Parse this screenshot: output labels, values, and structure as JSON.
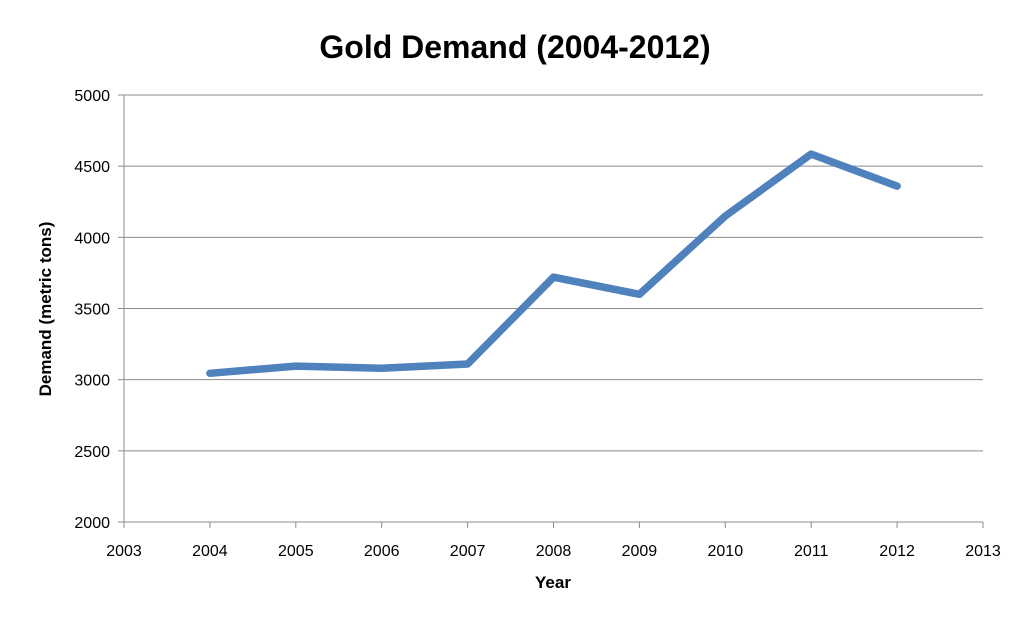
{
  "chart_data": {
    "type": "line",
    "title": "Gold Demand (2004-2012)",
    "xlabel": "Year",
    "ylabel": "Demand (metric tons)",
    "xlim": [
      2003,
      2013
    ],
    "ylim": [
      2000,
      5000
    ],
    "x_ticks": [
      "2003",
      "2004",
      "2005",
      "2006",
      "2007",
      "2008",
      "2009",
      "2010",
      "2011",
      "2012",
      "2013"
    ],
    "y_ticks": [
      "2000",
      "2500",
      "3000",
      "3500",
      "4000",
      "4500",
      "5000"
    ],
    "grid": "horizontal",
    "legend": "none",
    "series": [
      {
        "x": [
          2004,
          2005,
          2006,
          2007,
          2008,
          2009,
          2010,
          2011,
          2012
        ],
        "values": [
          3045,
          3095,
          3080,
          3110,
          3720,
          3600,
          4150,
          4585,
          4360
        ],
        "color": "#4F81BD"
      }
    ]
  }
}
